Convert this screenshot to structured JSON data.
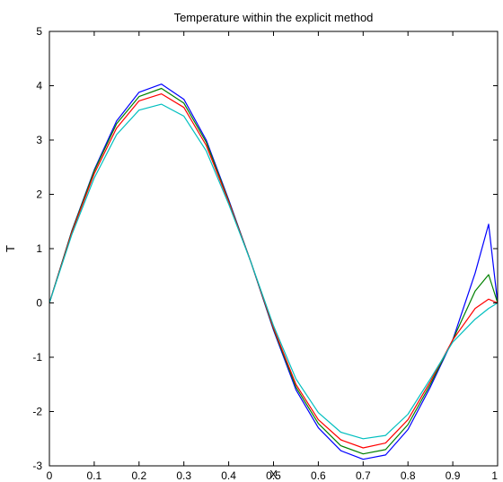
{
  "chart_data": {
    "type": "line",
    "title": "Temperature within the explicit method",
    "xlabel": "X",
    "ylabel": "T",
    "xlim": [
      0,
      1
    ],
    "ylim": [
      -3,
      5
    ],
    "xticks": [
      "0",
      "0.1",
      "0.2",
      "0.3",
      "0.4",
      "0.5",
      "0.6",
      "0.7",
      "0.8",
      "0.9",
      "1"
    ],
    "yticks": [
      "-3",
      "-2",
      "-1",
      "0",
      "1",
      "2",
      "3",
      "4",
      "5"
    ],
    "grid": false,
    "x": [
      0,
      0.05,
      0.1,
      0.15,
      0.2,
      0.25,
      0.3,
      0.35,
      0.4,
      0.45,
      0.5,
      0.55,
      0.6,
      0.65,
      0.7,
      0.75,
      0.8,
      0.85,
      0.9,
      0.95,
      0.98,
      1
    ],
    "series": [
      {
        "color": "#0000ff",
        "values": [
          0,
          1.33,
          2.45,
          3.35,
          3.88,
          4.03,
          3.75,
          3.0,
          1.9,
          0.74,
          -0.5,
          -1.6,
          -2.3,
          -2.72,
          -2.88,
          -2.8,
          -2.33,
          -1.55,
          -0.68,
          0.55,
          1.45,
          0
        ]
      },
      {
        "color": "#008000",
        "values": [
          0,
          1.32,
          2.43,
          3.3,
          3.8,
          3.95,
          3.68,
          2.96,
          1.88,
          0.74,
          -0.48,
          -1.55,
          -2.22,
          -2.63,
          -2.78,
          -2.7,
          -2.24,
          -1.5,
          -0.68,
          0.22,
          0.52,
          0
        ]
      },
      {
        "color": "#ff0000",
        "values": [
          0,
          1.3,
          2.38,
          3.22,
          3.72,
          3.85,
          3.6,
          2.9,
          1.86,
          0.74,
          -0.46,
          -1.5,
          -2.15,
          -2.52,
          -2.67,
          -2.58,
          -2.15,
          -1.45,
          -0.68,
          -0.1,
          0.07,
          0
        ]
      },
      {
        "color": "#00bfbf",
        "values": [
          0,
          1.26,
          2.3,
          3.1,
          3.55,
          3.66,
          3.44,
          2.8,
          1.82,
          0.74,
          -0.42,
          -1.4,
          -2.02,
          -2.38,
          -2.5,
          -2.44,
          -2.05,
          -1.4,
          -0.72,
          -0.3,
          -0.1,
          0
        ]
      }
    ]
  }
}
